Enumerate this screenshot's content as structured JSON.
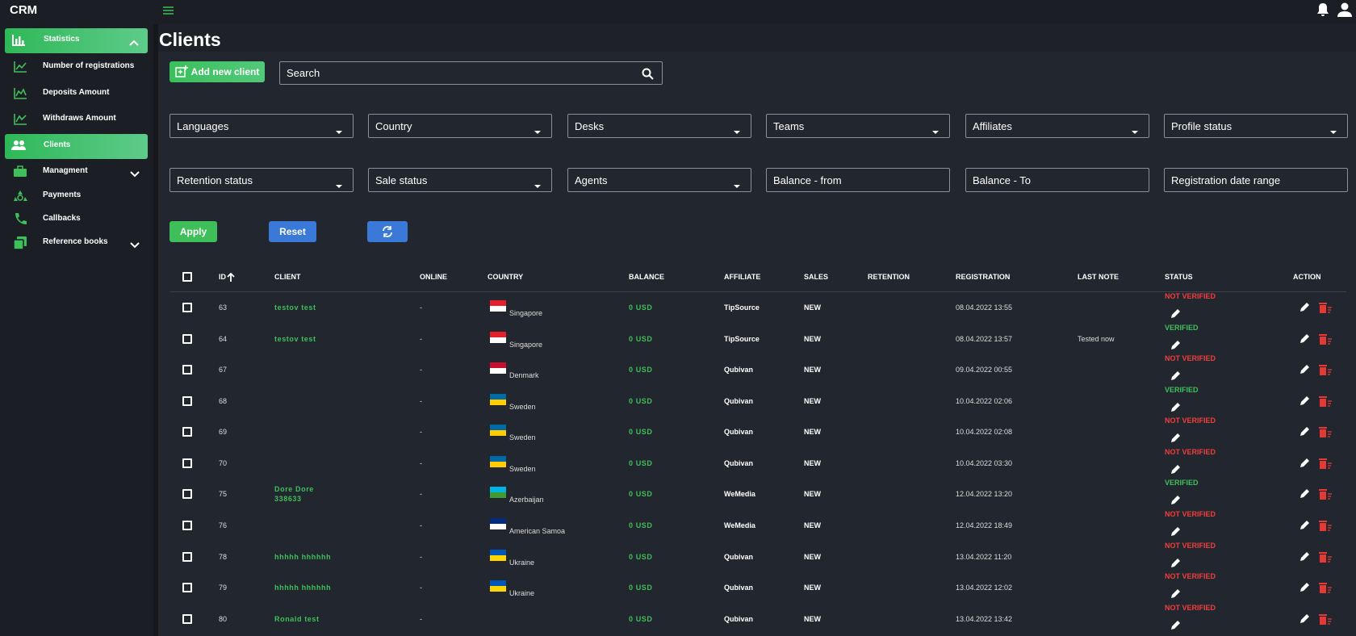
{
  "header": {
    "brand": "CRM"
  },
  "sidebar": {
    "items": [
      {
        "label": "Statistics"
      },
      {
        "label": "Number of registrations"
      },
      {
        "label": "Deposits Amount"
      },
      {
        "label": "Withdraws Amount"
      },
      {
        "label": "Clients"
      },
      {
        "label": "Managment"
      },
      {
        "label": "Payments"
      },
      {
        "label": "Callbacks"
      },
      {
        "label": "Reference books"
      }
    ]
  },
  "page": {
    "title": "Clients",
    "add_button": "Add new client",
    "search": "Search"
  },
  "dropdown_filters": [
    "Languages",
    "Country",
    "Desks",
    "Teams",
    "Affiliates",
    "Profile status",
    "Retention status",
    "Sale status",
    "Agents"
  ],
  "input_filters": [
    "Balance - from",
    "Balance - To",
    "Registration date range"
  ],
  "buttons": {
    "apply": "Apply",
    "reset": "Reset"
  },
  "table": {
    "columns": [
      "ID",
      "CLIENT",
      "ONLINE",
      "COUNTRY",
      "BALANCE",
      "AFFILIATE",
      "SALES",
      "RETENTION",
      "REGISTRATION",
      "LAST NOTE",
      "STATUS",
      "ACTION"
    ],
    "rows": [
      {
        "id": "63",
        "client": "testov test",
        "online": "-",
        "country": "Singapore",
        "flag": [
          "#e3202b",
          "#ffffff"
        ],
        "balance": "0 USD",
        "affiliate": "TipSource",
        "sales": "NEW",
        "registration": "08.04.2022 13:55",
        "status": "NOT VERIFIED",
        "status_color": "#f03e3e"
      },
      {
        "id": "64",
        "client": "testov test",
        "online": "-",
        "country": "Singapore",
        "flag": [
          "#e3202b",
          "#ffffff"
        ],
        "balance": "0 USD",
        "affiliate": "TipSource",
        "sales": "NEW",
        "registration": "08.04.2022 13:57",
        "last_note": "Tested now",
        "status": "VERIFIED",
        "status_color": "#3fbf5a"
      },
      {
        "id": "67",
        "online": "-",
        "country": "Denmark",
        "flag": [
          "#c8102e",
          "#ffffff"
        ],
        "balance": "0 USD",
        "affiliate": "Qubivan",
        "sales": "NEW",
        "registration": "09.04.2022 00:55",
        "status": "NOT VERIFIED",
        "status_color": "#f03e3e"
      },
      {
        "id": "68",
        "online": "-",
        "country": "Sweden",
        "flag": [
          "#006aa7",
          "#fecc00"
        ],
        "balance": "0 USD",
        "affiliate": "Qubivan",
        "sales": "NEW",
        "registration": "10.04.2022 02:06",
        "status": "VERIFIED",
        "status_color": "#3fbf5a"
      },
      {
        "id": "69",
        "online": "-",
        "country": "Sweden",
        "flag": [
          "#006aa7",
          "#fecc00"
        ],
        "balance": "0 USD",
        "affiliate": "Qubivan",
        "sales": "NEW",
        "registration": "10.04.2022 02:08",
        "status": "NOT VERIFIED",
        "status_color": "#f03e3e"
      },
      {
        "id": "70",
        "online": "-",
        "country": "Sweden",
        "flag": [
          "#006aa7",
          "#fecc00"
        ],
        "balance": "0 USD",
        "affiliate": "Qubivan",
        "sales": "NEW",
        "registration": "10.04.2022 03:30",
        "status": "NOT VERIFIED",
        "status_color": "#f03e3e"
      },
      {
        "id": "75",
        "client": "Dore Dore 338633",
        "online": "-",
        "country": "Azerbaijan",
        "flag": [
          "#00b5e2",
          "#3f9c35"
        ],
        "balance": "0 USD",
        "affiliate": "WeMedia",
        "sales": "NEW",
        "registration": "12.04.2022 13:20",
        "status": "VERIFIED",
        "status_color": "#3fbf5a"
      },
      {
        "id": "76",
        "online": "-",
        "country": "American Samoa",
        "flag": [
          "#002b7f",
          "#ffffff"
        ],
        "balance": "0 USD",
        "affiliate": "WeMedia",
        "sales": "NEW",
        "registration": "12.04.2022 18:49",
        "status": "NOT VERIFIED",
        "status_color": "#f03e3e"
      },
      {
        "id": "78",
        "client": "hhhhh hhhhhh",
        "online": "-",
        "country": "Ukraine",
        "flag": [
          "#0057b7",
          "#ffd700"
        ],
        "balance": "0 USD",
        "affiliate": "Qubivan",
        "sales": "NEW",
        "registration": "13.04.2022 11:20",
        "status": "NOT VERIFIED",
        "status_color": "#f03e3e"
      },
      {
        "id": "79",
        "client": "hhhhh hhhhhh",
        "online": "-",
        "country": "Ukraine",
        "flag": [
          "#0057b7",
          "#ffd700"
        ],
        "balance": "0 USD",
        "affiliate": "Qubivan",
        "sales": "NEW",
        "registration": "13.04.2022 12:02",
        "status": "NOT VERIFIED",
        "status_color": "#f03e3e"
      },
      {
        "id": "80",
        "client": "Ronald test",
        "online": "-",
        "balance": "0 USD",
        "affiliate": "Qubivan",
        "sales": "NEW",
        "registration": "13.04.2022 13:42",
        "status": "NOT VERIFIED",
        "status_color": "#f03e3e"
      }
    ]
  }
}
